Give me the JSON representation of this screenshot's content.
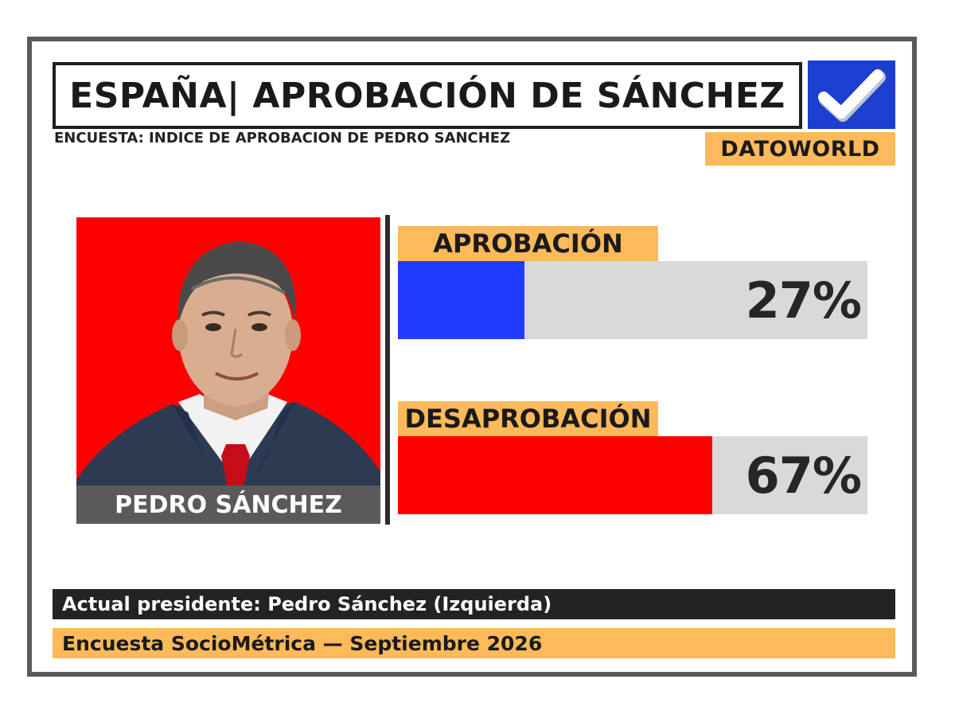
{
  "header": {
    "title": "ESPAÑA| APROBACIÓN DE SÁNCHEZ",
    "subtitle": "ENCUESTA: INDICE DE APROBACION DE PEDRO SANCHEZ",
    "brand": "DATOWORLD",
    "check_icon": "checkmark-icon"
  },
  "portrait": {
    "name": "PEDRO SÁNCHEZ",
    "background_color": "#ff0000"
  },
  "chart_data": {
    "type": "bar",
    "orientation": "horizontal",
    "categories": [
      "APROBACIÓN",
      "DESAPROBACIÓN"
    ],
    "values": [
      27,
      67
    ],
    "value_labels": [
      "27%",
      "67%"
    ],
    "unit": "%",
    "xlim": [
      0,
      100
    ],
    "colors": [
      "#1f3cff",
      "#ff0000"
    ],
    "track_color": "#d9d9d9",
    "grid": false
  },
  "footer": {
    "line1": "Actual presidente: Pedro Sánchez (Izquierda)",
    "line2": "Encuesta SocioMétrica — Septiembre 2026"
  },
  "colors": {
    "accent_orange": "#fdb95a",
    "check_blue": "#1b3fcf",
    "frame_gray": "#5a5a5a",
    "footer_dark": "#232323"
  }
}
